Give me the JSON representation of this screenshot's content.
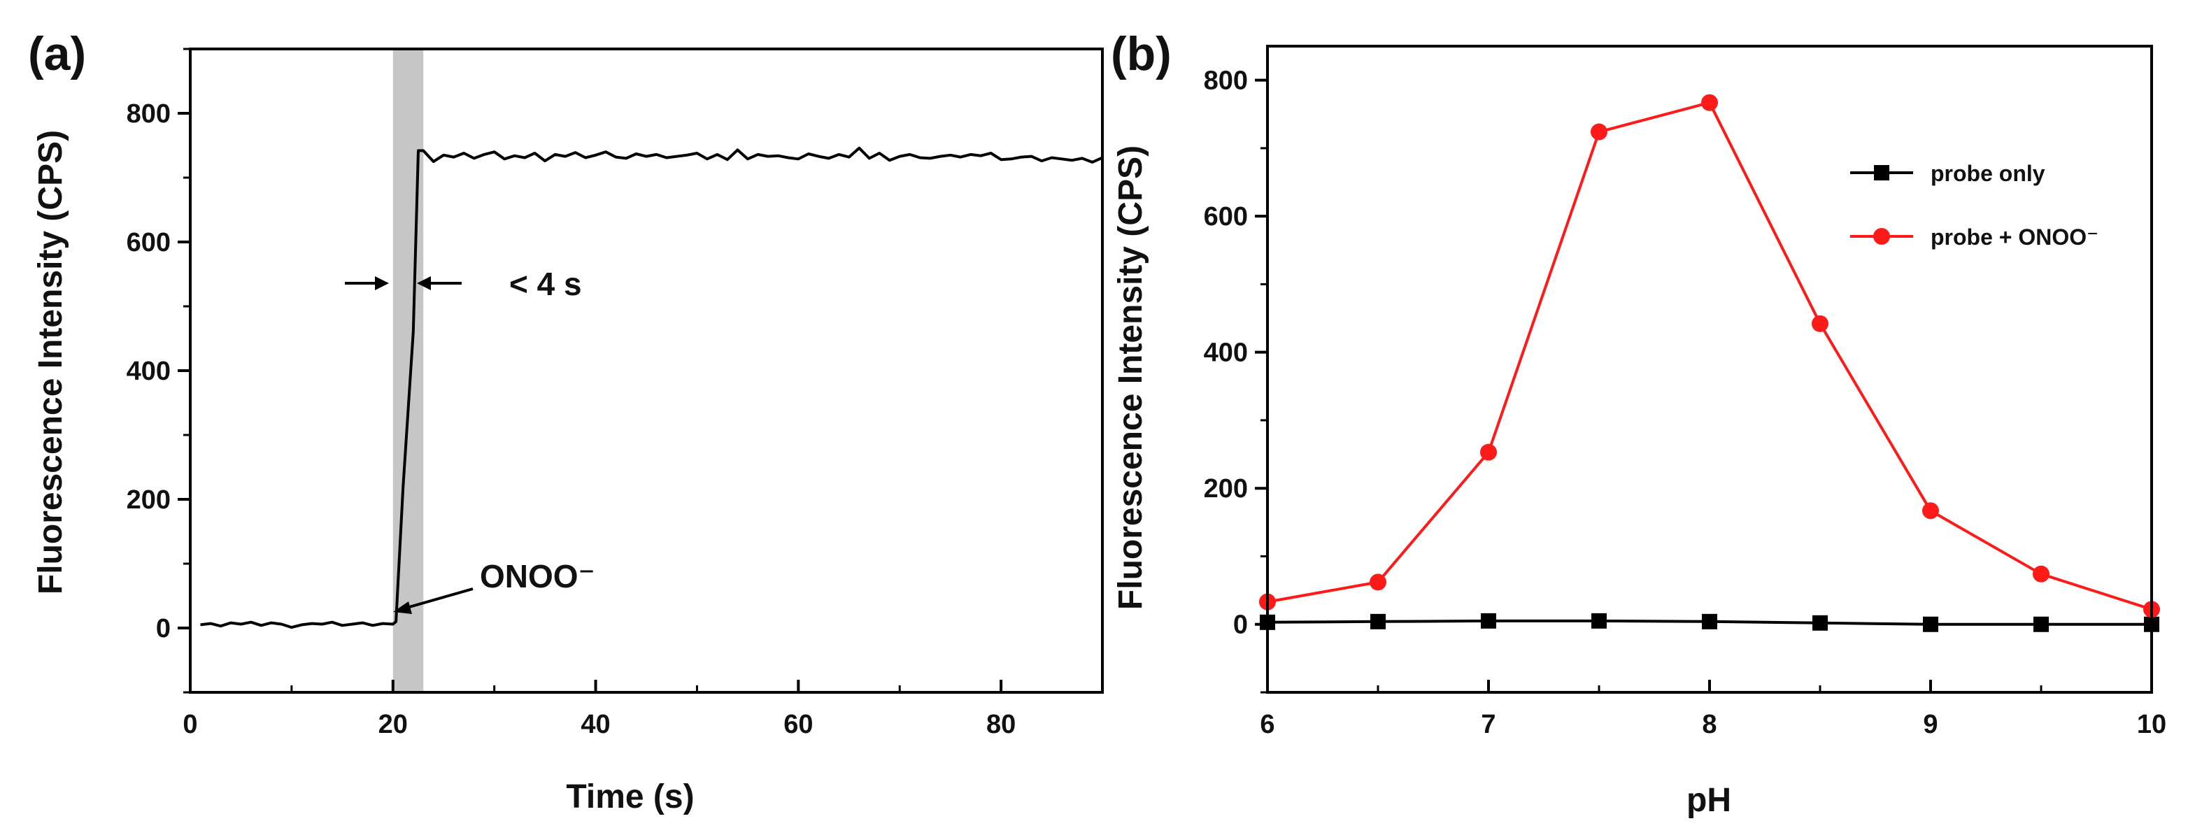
{
  "chart_data": [
    {
      "type": "line",
      "panel_label": "(a)",
      "title": "",
      "xlabel": "Time (s)",
      "ylabel": "Fluorescence Intensity (CPS)",
      "xlim": [
        0,
        90
      ],
      "ylim": [
        -100,
        900
      ],
      "xticks": [
        0,
        20,
        40,
        60,
        80
      ],
      "yticks": [
        0,
        200,
        400,
        600,
        800
      ],
      "highlight_band": [
        20,
        23
      ],
      "series": [
        {
          "name": "fluorescence",
          "color": "#000000",
          "x": [
            1,
            2,
            3,
            4,
            5,
            6,
            7,
            8,
            9,
            10,
            11,
            12,
            13,
            14,
            15,
            16,
            17,
            18,
            19,
            20,
            20.3,
            21,
            22,
            22.5,
            23,
            24,
            25,
            26,
            27,
            28,
            29,
            30,
            31,
            32,
            33,
            34,
            35,
            36,
            37,
            38,
            39,
            40,
            41,
            42,
            43,
            44,
            45,
            46,
            47,
            48,
            49,
            50,
            51,
            52,
            53,
            54,
            55,
            56,
            57,
            58,
            59,
            60,
            61,
            62,
            63,
            64,
            65,
            66,
            67,
            68,
            69,
            70,
            71,
            72,
            73,
            74,
            75,
            76,
            77,
            78,
            79,
            80,
            81,
            82,
            83,
            84,
            85,
            86,
            87,
            88,
            89,
            90
          ],
          "values": [
            5,
            7,
            3,
            8,
            6,
            9,
            4,
            8,
            6,
            1,
            5,
            7,
            6,
            9,
            4,
            6,
            8,
            4,
            7,
            6,
            10,
            220,
            460,
            742,
            742,
            725,
            735,
            732,
            738,
            730,
            736,
            740,
            729,
            734,
            731,
            738,
            726,
            736,
            733,
            739,
            731,
            735,
            740,
            732,
            730,
            737,
            733,
            736,
            731,
            733,
            735,
            738,
            729,
            736,
            728,
            743,
            729,
            736,
            733,
            734,
            731,
            729,
            737,
            733,
            730,
            736,
            732,
            746,
            730,
            738,
            727,
            733,
            736,
            731,
            730,
            733,
            735,
            732,
            736,
            734,
            738,
            728,
            729,
            732,
            733,
            726,
            731,
            729,
            727,
            730,
            724,
            731
          ]
        }
      ],
      "annotations": {
        "reagent_label": "ONOO⁻",
        "interval_label": "< 4 s"
      }
    },
    {
      "type": "line",
      "panel_label": "(b)",
      "title": "",
      "xlabel": "pH",
      "ylabel": "Fluorescence Intensity (CPS)",
      "xlim": [
        6,
        10
      ],
      "ylim": [
        -100,
        850
      ],
      "xticks": [
        6,
        7,
        8,
        9,
        10
      ],
      "yticks": [
        0,
        200,
        400,
        600,
        800
      ],
      "legend_position": "top-right",
      "series": [
        {
          "name": "probe only",
          "color": "#000000",
          "marker": "square",
          "x": [
            6,
            6.5,
            7,
            7.5,
            8,
            8.5,
            9,
            9.5,
            10
          ],
          "values": [
            3,
            4,
            5,
            5,
            4,
            2,
            0,
            0,
            0
          ]
        },
        {
          "name": "probe + ONOO⁻",
          "color": "#ff1a1a",
          "marker": "circle",
          "x": [
            6,
            6.5,
            7,
            7.5,
            8,
            8.5,
            9,
            9.5,
            10
          ],
          "values": [
            33,
            62,
            253,
            724,
            767,
            442,
            167,
            74,
            22
          ]
        }
      ]
    }
  ]
}
